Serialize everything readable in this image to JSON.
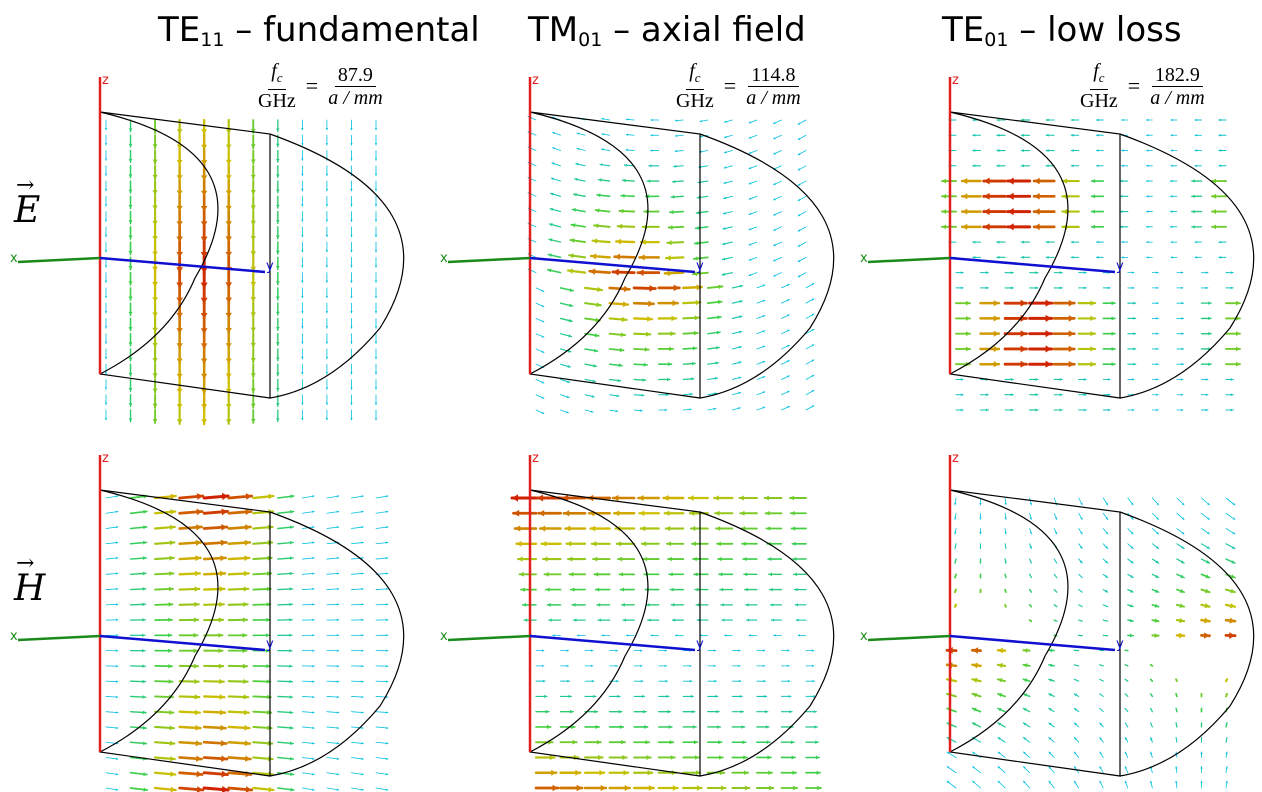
{
  "columns": [
    {
      "mode": "TE",
      "sub": "11",
      "rest": " – fundamental",
      "fc_label": "f",
      "fc_sub": "c",
      "unit_ghz": "GHz",
      "value": "87.9",
      "a_unit": "a / mm"
    },
    {
      "mode": "TM",
      "sub": "01",
      "rest": " – axial field",
      "fc_label": "f",
      "fc_sub": "c",
      "unit_ghz": "GHz",
      "value": "114.8",
      "a_unit": "a / mm"
    },
    {
      "mode": "TE",
      "sub": "01",
      "rest": " – low loss",
      "fc_label": "f",
      "fc_sub": "c",
      "unit_ghz": "GHz",
      "value": "182.9",
      "a_unit": "a / mm"
    }
  ],
  "rows": [
    {
      "label": "E",
      "arrow": "→"
    },
    {
      "label": "H",
      "arrow": "→"
    }
  ],
  "axes": {
    "x": "x",
    "y": "y",
    "z": "z"
  },
  "colors": {
    "z_axis": "#e02020",
    "x_axis": "#1a8a1a",
    "y_axis": "#1010d0",
    "outline": "#000000"
  }
}
